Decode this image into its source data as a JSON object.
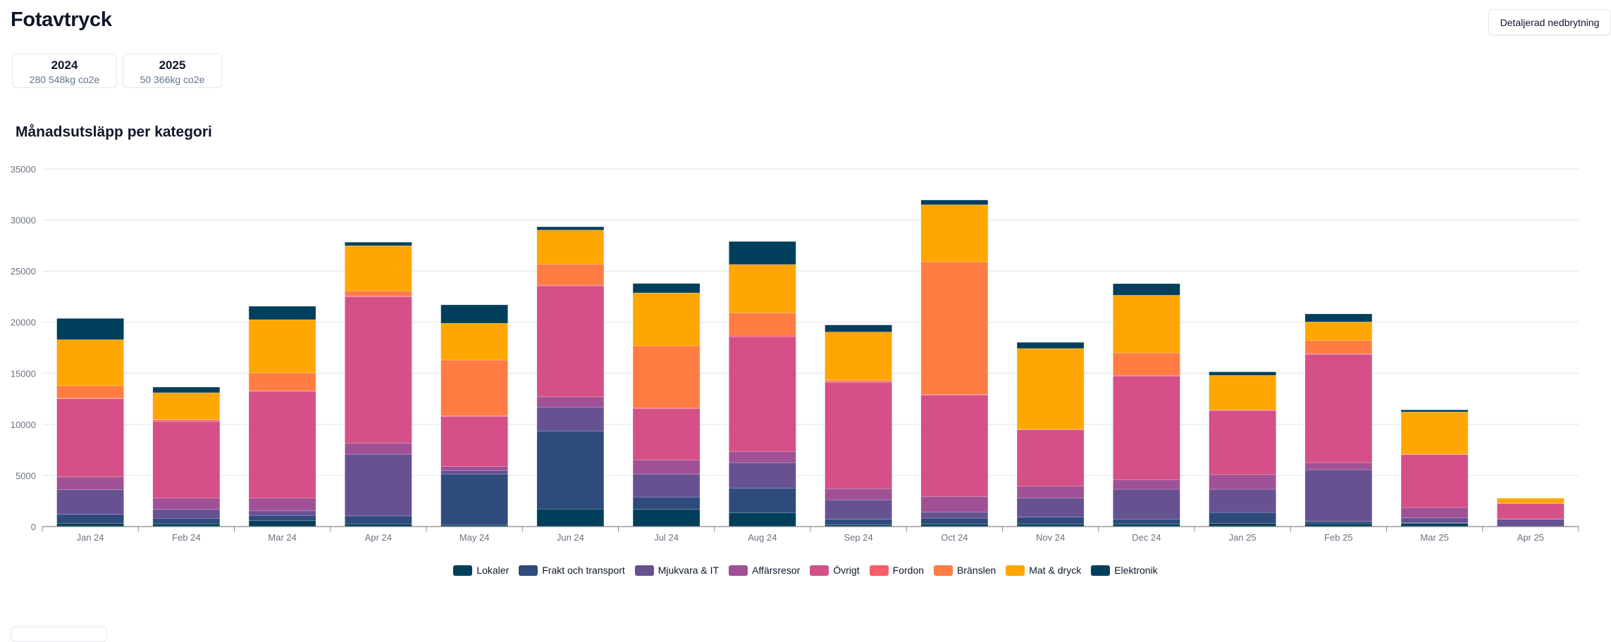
{
  "header": {
    "title": "Fotavtryck",
    "detail_button": "Detaljerad nedbrytning"
  },
  "summary_cards": [
    {
      "year": "2024",
      "value": "280 548kg co2e"
    },
    {
      "year": "2025",
      "value": "50 366kg co2e"
    }
  ],
  "chart_data": {
    "type": "bar",
    "stacked": true,
    "title": "Månadsutsläpp per kategori",
    "xlabel": "",
    "ylabel": "",
    "ylim": [
      0,
      35000
    ],
    "yticks": [
      "0",
      "5000",
      "10000",
      "15000",
      "20000",
      "25000",
      "30000",
      "35000"
    ],
    "grid": true,
    "legend_position": "bottom",
    "categories": [
      "Jan 24",
      "Feb 24",
      "Mar 24",
      "Apr 24",
      "May 24",
      "Jun 24",
      "Jul 24",
      "Aug 24",
      "Sep 24",
      "Oct 24",
      "Nov 24",
      "Dec 24",
      "Jan 25",
      "Feb 25",
      "Mar 25",
      "Apr 25"
    ],
    "series": [
      {
        "name": "Lokaler",
        "color": "#003f5c",
        "values": [
          320,
          270,
          570,
          250,
          150,
          1720,
          1675,
          1350,
          160,
          230,
          230,
          250,
          300,
          275,
          300,
          0
        ]
      },
      {
        "name": "Frakt och transport",
        "color": "#2f4b7c",
        "values": [
          870,
          545,
          520,
          790,
          4990,
          7640,
          1215,
          2410,
          550,
          600,
          690,
          480,
          1080,
          230,
          90,
          20
        ]
      },
      {
        "name": "Mjukvara & IT",
        "color": "#665191",
        "values": [
          2420,
          865,
          440,
          6050,
          350,
          2320,
          2250,
          2500,
          1905,
          590,
          1880,
          2920,
          2270,
          5070,
          480,
          710
        ]
      },
      {
        "name": "Affärsresor",
        "color": "#a05195",
        "values": [
          1235,
          1110,
          1260,
          1070,
          390,
          1010,
          1375,
          1080,
          1100,
          1520,
          1150,
          940,
          1440,
          685,
          990,
          20
        ]
      },
      {
        "name": "Övrigt",
        "color": "#d45087",
        "values": [
          7665,
          7490,
          10440,
          14340,
          4900,
          10870,
          5045,
          11240,
          10395,
          9930,
          5520,
          10140,
          6270,
          10600,
          5180,
          1500
        ]
      },
      {
        "name": "Fordon",
        "color": "#f95d6a",
        "values": [
          50,
          150,
          70,
          60,
          50,
          70,
          30,
          160,
          110,
          50,
          50,
          70,
          50,
          70,
          50,
          50
        ]
      },
      {
        "name": "Bränslen",
        "color": "#ff7c43",
        "values": [
          1230,
          70,
          1730,
          500,
          5460,
          2040,
          6100,
          2180,
          120,
          12980,
          0,
          2200,
          0,
          1280,
          0,
          0
        ]
      },
      {
        "name": "Mat & dryck",
        "color": "#ffa600",
        "values": [
          4500,
          2600,
          5220,
          4430,
          3610,
          3350,
          5180,
          4730,
          4700,
          5600,
          7910,
          5640,
          3390,
          1820,
          4130,
          480
        ]
      },
      {
        "name": "Elektronik",
        "color": "#003f5c",
        "values": [
          2080,
          550,
          1310,
          340,
          1800,
          320,
          920,
          2250,
          690,
          460,
          600,
          1130,
          340,
          780,
          200,
          0
        ]
      }
    ]
  }
}
